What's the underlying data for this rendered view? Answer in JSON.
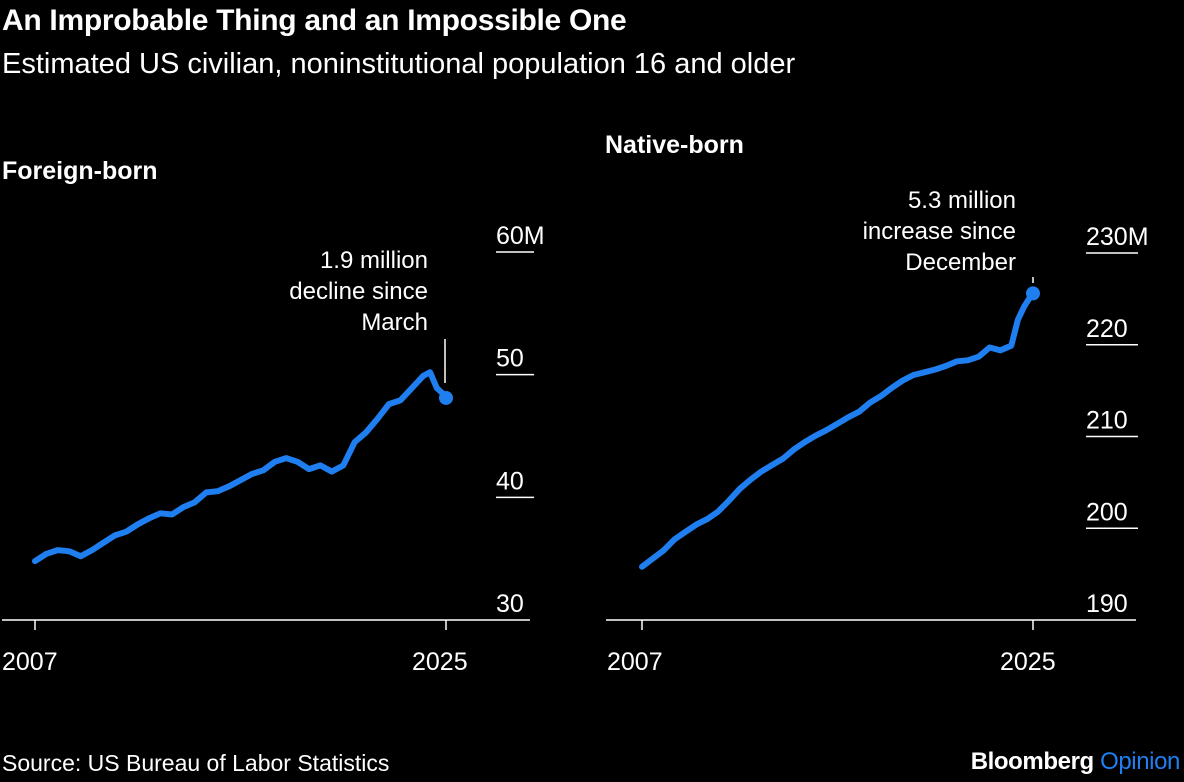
{
  "header": {
    "title": "An Improbable Thing and an Impossible One",
    "subtitle": "Estimated US civilian, noninstitutional population 16 and older"
  },
  "footer": {
    "source": "Source: US Bureau of Labor Statistics",
    "brand_main": "Bloomberg",
    "brand_accent": "Opinion"
  },
  "colors": {
    "line": "#1f7ff0",
    "background": "#000000",
    "text": "#ffffff",
    "accent": "#1f7ff0"
  },
  "chart_data": [
    {
      "type": "line",
      "title": "Foreign-born",
      "x_tick_labels": [
        "2007",
        "2025"
      ],
      "y_ticks": [
        30,
        40,
        50,
        60
      ],
      "y_tick_labels": [
        "30",
        "40",
        "50",
        "60M"
      ],
      "ylim": [
        30,
        60
      ],
      "xlim": [
        2007,
        2025.5
      ],
      "series": [
        {
          "x": [
            2007.0,
            2007.5,
            2008.0,
            2008.5,
            2009.0,
            2009.5,
            2010.0,
            2010.5,
            2011.0,
            2011.5,
            2012.0,
            2012.5,
            2013.0,
            2013.5,
            2014.0,
            2014.5,
            2015.0,
            2015.5,
            2016.0,
            2016.5,
            2017.0,
            2017.5,
            2018.0,
            2018.5,
            2019.0,
            2019.5,
            2020.0,
            2020.5,
            2021.0,
            2021.5,
            2022.0,
            2022.5,
            2023.0,
            2023.5,
            2024.0,
            2024.3,
            2024.6,
            2024.9,
            2025.0
          ],
          "values": [
            34.8,
            35.4,
            35.7,
            35.6,
            35.2,
            35.7,
            36.3,
            36.9,
            37.2,
            37.8,
            38.3,
            38.7,
            38.6,
            39.2,
            39.6,
            40.4,
            40.5,
            40.9,
            41.4,
            41.9,
            42.2,
            42.9,
            43.2,
            42.9,
            42.3,
            42.6,
            42.1,
            42.6,
            44.5,
            45.3,
            46.4,
            47.6,
            47.9,
            48.9,
            49.9,
            50.2,
            48.9,
            48.4,
            48.1
          ]
        }
      ]
    },
    {
      "type": "line",
      "title": "Native-born",
      "x_tick_labels": [
        "2007",
        "2025"
      ],
      "y_ticks": [
        190,
        200,
        210,
        220,
        230
      ],
      "y_tick_labels": [
        "190",
        "200",
        "210",
        "220",
        "230M"
      ],
      "ylim": [
        190,
        230
      ],
      "xlim": [
        2007,
        2025.5
      ],
      "series": [
        {
          "x": [
            2007.0,
            2007.5,
            2008.0,
            2008.5,
            2009.0,
            2009.5,
            2010.0,
            2010.5,
            2011.0,
            2011.5,
            2012.0,
            2012.5,
            2013.0,
            2013.5,
            2014.0,
            2014.5,
            2015.0,
            2015.5,
            2016.0,
            2016.5,
            2017.0,
            2017.5,
            2018.0,
            2018.5,
            2019.0,
            2019.5,
            2020.0,
            2020.5,
            2021.0,
            2021.5,
            2022.0,
            2022.5,
            2023.0,
            2023.5,
            2024.0,
            2024.3,
            2024.6,
            2024.9,
            2025.0
          ],
          "values": [
            195.8,
            196.7,
            197.6,
            198.8,
            199.6,
            200.4,
            201.0,
            201.8,
            203.0,
            204.3,
            205.3,
            206.2,
            206.9,
            207.6,
            208.6,
            209.4,
            210.1,
            210.7,
            211.4,
            212.1,
            212.7,
            213.7,
            214.4,
            215.3,
            216.1,
            216.7,
            217.0,
            217.3,
            217.7,
            218.2,
            218.3,
            218.7,
            219.7,
            219.4,
            219.9,
            222.7,
            224.2,
            225.3,
            225.6
          ]
        }
      ]
    }
  ],
  "annotations": {
    "foreign": [
      "1.9 million",
      "decline since",
      "March"
    ],
    "native": [
      "5.3 million",
      "increase since",
      "December"
    ]
  }
}
